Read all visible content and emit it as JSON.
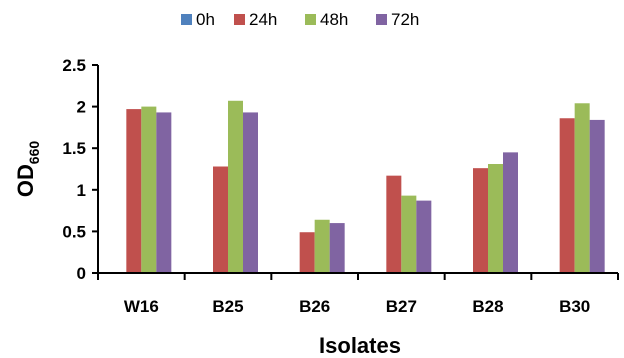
{
  "chart_data": {
    "type": "bar",
    "categories": [
      "W16",
      "B25",
      "B26",
      "B27",
      "B28",
      "B30"
    ],
    "series": [
      {
        "name": "0h",
        "color": "#4F81BD",
        "values": [
          0,
          0,
          0,
          0,
          0,
          0
        ]
      },
      {
        "name": "24h",
        "color": "#C0504D",
        "values": [
          1.97,
          1.28,
          0.49,
          1.17,
          1.26,
          1.86
        ]
      },
      {
        "name": "48h",
        "color": "#9BBB59",
        "values": [
          2.0,
          2.07,
          0.64,
          0.93,
          1.31,
          2.04
        ]
      },
      {
        "name": "72h",
        "color": "#8064A2",
        "values": [
          1.93,
          1.93,
          0.6,
          0.87,
          1.45,
          1.84
        ]
      }
    ],
    "xlabel": "Isolates",
    "ylabel_main": "OD",
    "ylabel_sub": "660",
    "ylim": [
      0,
      2.5
    ],
    "yticks": [
      "0",
      "0.5",
      "1",
      "1.5",
      "2",
      "2.5"
    ],
    "ytick_values": [
      0,
      0.5,
      1,
      1.5,
      2,
      2.5
    ],
    "grid": false,
    "legend_position": "top"
  }
}
